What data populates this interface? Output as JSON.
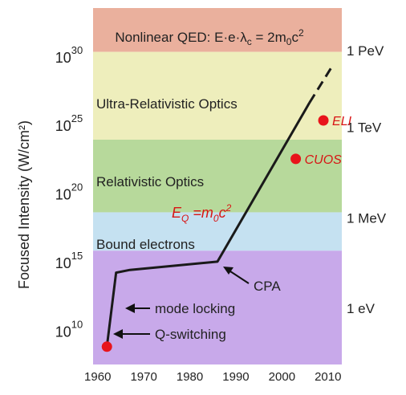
{
  "chart_data": {
    "type": "line",
    "ylabel": "Focused Intensity (W/cm²)",
    "x_ticks": [
      1960,
      1970,
      1980,
      1990,
      2000,
      2010
    ],
    "xlim": [
      1959,
      2013
    ],
    "y_scale": "log",
    "ylim_log10": [
      7.5,
      33.5
    ],
    "y_ticks": [
      {
        "base": "10",
        "exp": "10",
        "log10": 10
      },
      {
        "base": "10",
        "exp": "15",
        "log10": 15
      },
      {
        "base": "10",
        "exp": "20",
        "log10": 20
      },
      {
        "base": "10",
        "exp": "25",
        "log10": 25
      },
      {
        "base": "10",
        "exp": "30",
        "log10": 30
      }
    ],
    "regions": [
      {
        "label": "Nonlinear QED: E·e·λc = 2m0c2",
        "label_parts": [
          "Nonlinear QED: E·e·λ",
          "c",
          " = 2m",
          "0",
          "c",
          "2"
        ],
        "from_log10": 30.3,
        "to_log10": 33.5,
        "color": "#eab09d"
      },
      {
        "label": "Ultra-Relativistic Optics",
        "from_log10": 23.9,
        "to_log10": 30.3,
        "color": "#eeeebc"
      },
      {
        "label": "Relativistic Optics",
        "from_log10": 18.6,
        "to_log10": 23.9,
        "color": "#b7d99b"
      },
      {
        "label": "Bound electrons",
        "from_log10": 15.8,
        "to_log10": 18.6,
        "color": "#c5e1f1"
      },
      {
        "label": "",
        "from_log10": 7.5,
        "to_log10": 15.8,
        "color": "#c8a9ea"
      }
    ],
    "energy_labels": [
      {
        "text": "1 PeV",
        "log10": 30.4
      },
      {
        "text": "1 TeV",
        "log10": 24.8
      },
      {
        "text": "1 MeV",
        "log10": 18.2
      },
      {
        "text": "1 eV",
        "log10": 11.6
      }
    ],
    "series": [
      {
        "style": "solid",
        "points": [
          {
            "x": 1962,
            "y_log10": 8.8
          },
          {
            "x": 1964,
            "y_log10": 14.2
          },
          {
            "x": 1967,
            "y_log10": 14.4
          },
          {
            "x": 1986,
            "y_log10": 15.0
          },
          {
            "x": 2006,
            "y_log10": 26.6
          }
        ]
      },
      {
        "style": "dashed",
        "points": [
          {
            "x": 2006,
            "y_log10": 26.6
          },
          {
            "x": 2011,
            "y_log10": 29.3
          }
        ]
      }
    ],
    "markers": [
      {
        "x": 1962,
        "y_log10": 8.8,
        "label": ""
      },
      {
        "x": 2003,
        "y_log10": 22.5,
        "label": "CUOS"
      },
      {
        "x": 2009,
        "y_log10": 25.3,
        "label": "ELI"
      }
    ],
    "annotations": [
      {
        "id": "cpa",
        "text": "CPA"
      },
      {
        "id": "mode-locking",
        "text": "mode locking"
      },
      {
        "id": "q-switching",
        "text": "Q-switching"
      },
      {
        "id": "eq",
        "text": "EQ =m0c2",
        "parts": [
          "E",
          "Q",
          " =m",
          "0",
          "c",
          "2"
        ]
      }
    ],
    "grid": false,
    "colors": {
      "line": "#1a1a1a",
      "marker": "#e8141b",
      "label_red": "#d81515",
      "text": "#222222"
    }
  }
}
